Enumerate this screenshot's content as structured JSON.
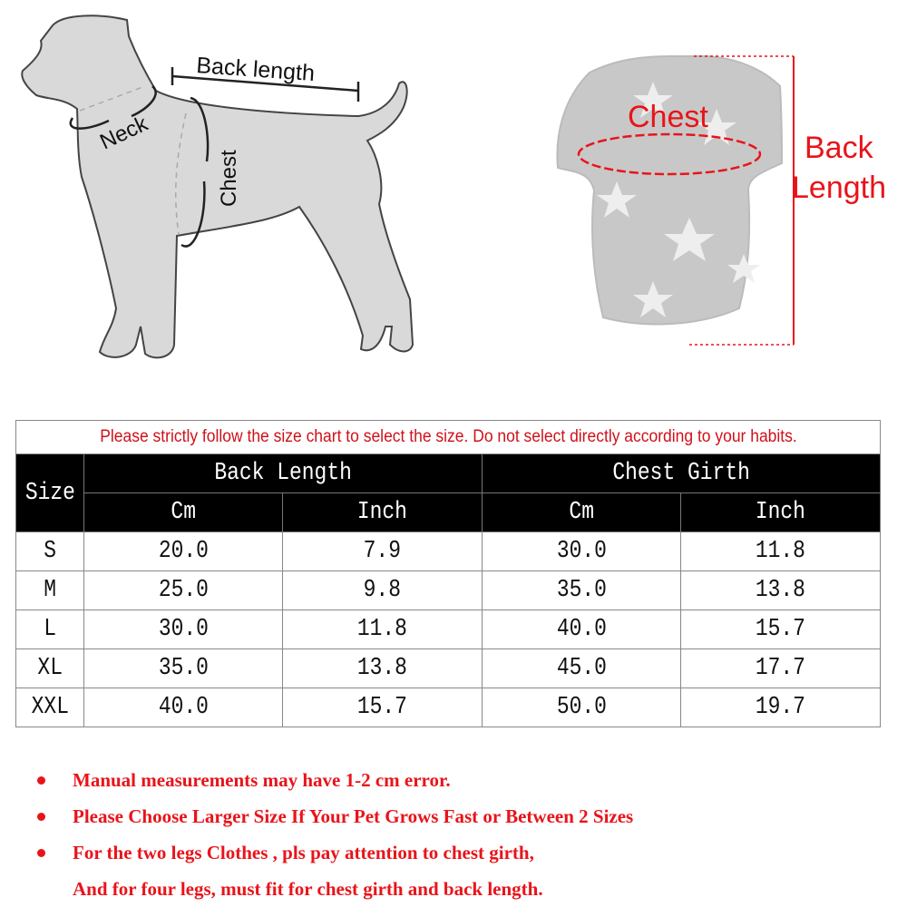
{
  "diagram": {
    "dog_labels": {
      "back_length": "Back length",
      "neck": "Neck",
      "chest": "Chest"
    },
    "sweater_labels": {
      "chest": "Chest",
      "back_length_line1": "Back",
      "back_length_line2": "Length"
    }
  },
  "table": {
    "notice": "Please strictly follow the size chart to select the size. Do not select directly according to your habits.",
    "headers": {
      "size": "Size",
      "back_length": "Back Length",
      "chest_girth": "Chest Girth",
      "cm": "Cm",
      "inch": "Inch"
    },
    "rows": [
      {
        "size": "S",
        "back_cm": "20.0",
        "back_inch": "7.9",
        "chest_cm": "30.0",
        "chest_inch": "11.8"
      },
      {
        "size": "M",
        "back_cm": "25.0",
        "back_inch": "9.8",
        "chest_cm": "35.0",
        "chest_inch": "13.8"
      },
      {
        "size": "L",
        "back_cm": "30.0",
        "back_inch": "11.8",
        "chest_cm": "40.0",
        "chest_inch": "15.7"
      },
      {
        "size": "XL",
        "back_cm": "35.0",
        "back_inch": "13.8",
        "chest_cm": "45.0",
        "chest_inch": "17.7"
      },
      {
        "size": "XXL",
        "back_cm": "40.0",
        "back_inch": "15.7",
        "chest_cm": "50.0",
        "chest_inch": "19.7"
      }
    ]
  },
  "notes": [
    "Manual measurements may have 1-2 cm error.",
    "Please Choose Larger Size If Your Pet Grows Fast or Between 2 Sizes",
    "For the two legs Clothes , pls pay attention to chest girth,",
    "And for four legs, must fit for chest girth and back length."
  ],
  "colors": {
    "accent_red": "#e8141a",
    "header_bg": "#000000",
    "dog_fill": "#d9d9d9"
  }
}
